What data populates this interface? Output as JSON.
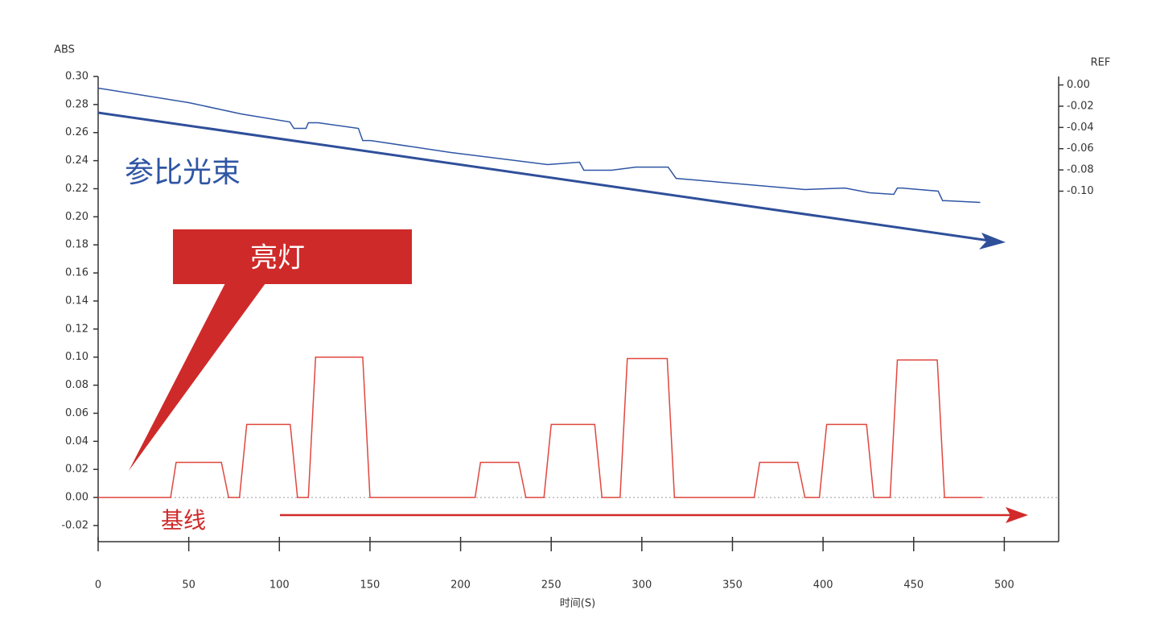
{
  "chart_data": {
    "type": "line",
    "y_label": "ABS",
    "y2_label": "REF",
    "x_label": "时间(S)",
    "annotations": [
      "参比光束",
      "亮灯",
      "基线"
    ],
    "xlim": [
      0,
      530
    ],
    "xticks": [
      0,
      50,
      100,
      150,
      200,
      250,
      300,
      350,
      400,
      450,
      500
    ],
    "ylim": [
      -0.0315,
      0.3
    ],
    "yticks": [
      {
        "value": -0.02,
        "label": "-0.02"
      },
      {
        "value": 0,
        "label": "0.00"
      },
      {
        "value": 0.02,
        "label": "0.02"
      },
      {
        "value": 0.04,
        "label": "0.04"
      },
      {
        "value": 0.06,
        "label": "0.06"
      },
      {
        "value": 0.08,
        "label": "0.08"
      },
      {
        "value": 0.1,
        "label": "0.10"
      },
      {
        "value": 0.12,
        "label": "0.12"
      },
      {
        "value": 0.14,
        "label": "0.14"
      },
      {
        "value": 0.16,
        "label": "0.16"
      },
      {
        "value": 0.18,
        "label": "0.18"
      },
      {
        "value": 0.2,
        "label": "0.20"
      },
      {
        "value": 0.22,
        "label": "0.22"
      },
      {
        "value": 0.24,
        "label": "0.24"
      },
      {
        "value": 0.26,
        "label": "0.26"
      },
      {
        "value": 0.28,
        "label": "0.28"
      },
      {
        "value": 0.3,
        "label": "0.30"
      }
    ],
    "y2lim": [
      -0.43,
      0.008
    ],
    "y2ticks": [
      {
        "value": 0,
        "label": "0.00"
      },
      {
        "value": -0.02,
        "label": "-0.02"
      },
      {
        "value": -0.04,
        "label": "-0.04"
      },
      {
        "value": -0.06,
        "label": "-0.06"
      },
      {
        "value": -0.08,
        "label": "-0.08"
      },
      {
        "value": -0.1,
        "label": "-0.10"
      }
    ],
    "series": [
      {
        "name": "参比光束",
        "color": "#2f55a4",
        "axis": "y2",
        "x": [
          0,
          50.2,
          79,
          105.8,
          108,
          114.7,
          116,
          121.4,
          143.6,
          146,
          150.3,
          194.7,
          248,
          265.6,
          268,
          283.4,
          296.7,
          314.5,
          318.9,
          390,
          412,
          425.7,
          439,
          441,
          443.5,
          463.5,
          466,
          468,
          486.7
        ],
        "values": [
          -0.003,
          -0.0167,
          -0.0273,
          -0.0348,
          -0.0409,
          -0.0409,
          -0.0356,
          -0.0356,
          -0.0409,
          -0.0523,
          -0.0523,
          -0.0636,
          -0.075,
          -0.0727,
          -0.0803,
          -0.0803,
          -0.0773,
          -0.0773,
          -0.0879,
          -0.0985,
          -0.097,
          -0.1015,
          -0.103,
          -0.097,
          -0.097,
          -0.1,
          -0.109,
          -0.109,
          -0.1106
        ]
      },
      {
        "name": "亮灯",
        "color": "#e0473f",
        "axis": "y",
        "x": [
          0,
          40,
          43,
          68,
          72,
          78,
          82,
          106,
          110,
          116,
          120,
          146,
          150,
          208,
          211,
          232,
          236,
          246,
          250,
          274,
          278,
          288,
          292,
          314,
          318,
          362,
          365,
          386,
          390,
          398,
          402,
          424,
          428,
          437,
          441,
          463,
          467,
          488
        ],
        "values": [
          0,
          0,
          0.025,
          0.025,
          0,
          0,
          0.052,
          0.052,
          0,
          0,
          0.1,
          0.1,
          0,
          0,
          0.025,
          0.025,
          0,
          0,
          0.052,
          0.052,
          0,
          0,
          0.099,
          0.099,
          0,
          0,
          0.025,
          0.025,
          0,
          0,
          0.052,
          0.052,
          0,
          0,
          0.098,
          0.098,
          0,
          0
        ]
      }
    ]
  }
}
